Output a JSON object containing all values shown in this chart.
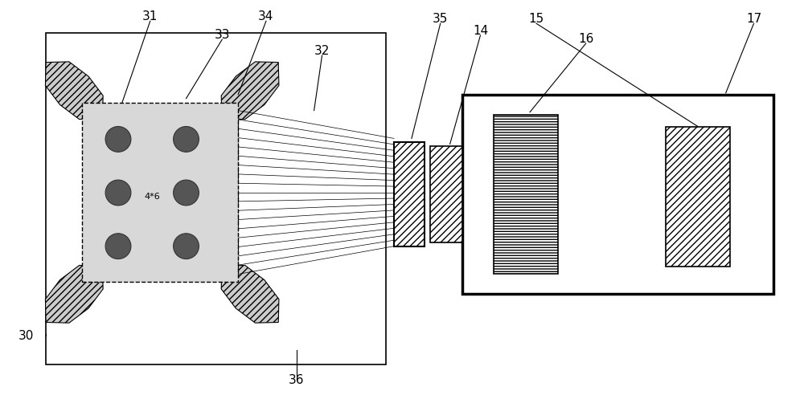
{
  "bg_color": "#ffffff",
  "fig_width": 10.0,
  "fig_height": 4.97,
  "wing_hatch": "////",
  "wing_color": "#cccccc",
  "electrode_color": "#555555",
  "electrode_bg": "#d8d8d8",
  "connector_hatch": "////",
  "pad_hatch": "////",
  "inner_pad_hatch": "---",
  "line_color": "black"
}
